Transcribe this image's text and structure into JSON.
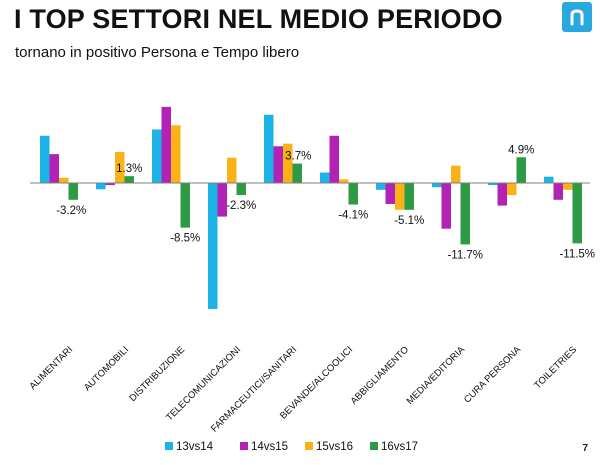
{
  "header": {
    "title": "I TOP SETTORI NEL MEDIO PERIODO",
    "subtitle": "tornano in positivo Persona e Tempo libero",
    "page_number": "7"
  },
  "colors": {
    "s13vs14": "#1cb3e6",
    "s14vs15": "#b223b5",
    "s15vs16": "#fbb216",
    "s16vs17": "#2e9a45",
    "logo": "#29a8e0"
  },
  "chart_data": {
    "type": "bar",
    "title": "I TOP SETTORI NEL MEDIO PERIODO",
    "categories": [
      "ALIMENTARI",
      "AUTOMOBILI",
      "DISTRIBUZIONE",
      "TELECOMUNICAZIONI",
      "FARMACEUTICI/SANITARI",
      "BEVANDE/ALCOOLICI",
      "ABBIGLIAMENTO",
      "MEDIA/EDITORIA",
      "CURA PERSONA",
      "TOILETRIES"
    ],
    "series": [
      {
        "name": "13vs14",
        "values": [
          9.0,
          -1.2,
          10.2,
          -24.0,
          13.0,
          2.0,
          -1.3,
          -0.8,
          -0.4,
          1.2
        ]
      },
      {
        "name": "14vs15",
        "values": [
          5.5,
          -0.4,
          14.5,
          -6.4,
          7.0,
          9.0,
          -4.0,
          -8.7,
          -4.3,
          -3.2
        ]
      },
      {
        "name": "15vs16",
        "values": [
          1.0,
          5.9,
          11.0,
          4.8,
          7.5,
          0.7,
          -5.1,
          3.3,
          -2.3,
          -1.3
        ]
      },
      {
        "name": "16vs17",
        "values": [
          -3.2,
          1.3,
          -8.5,
          -2.3,
          3.7,
          -4.1,
          -5.1,
          -11.7,
          4.9,
          -11.5
        ]
      }
    ],
    "data_labels": [
      "-3.2%",
      "1.3%",
      "-8.5%",
      "-2.3%",
      "3.7%",
      "-4.1%",
      "-5.1%",
      "-11.7%",
      "4.9%",
      "-11.5%"
    ],
    "xlabel": "",
    "ylabel": "",
    "ylim": [
      -25,
      15
    ],
    "grid": false,
    "legend": [
      "13vs14",
      "14vs15",
      "15vs16",
      "16vs17"
    ],
    "legend_position": "bottom"
  }
}
